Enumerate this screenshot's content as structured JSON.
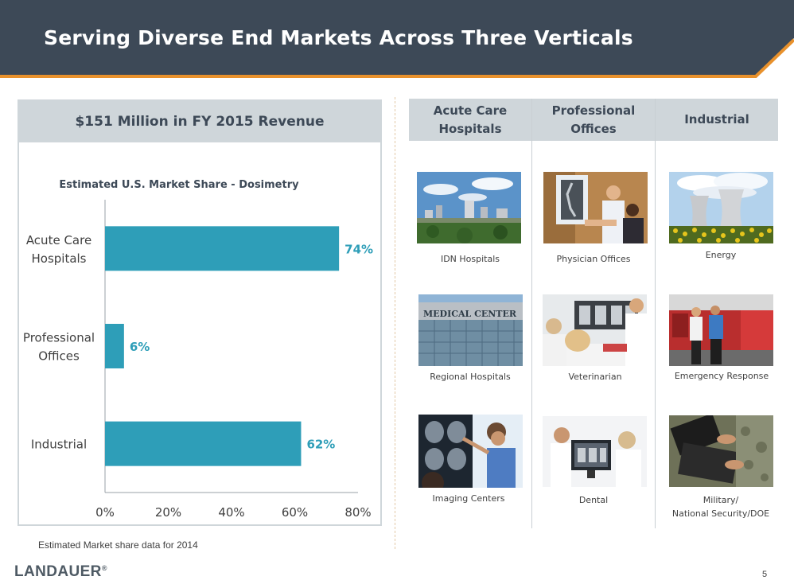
{
  "slide": {
    "title": "Serving Diverse End Markets Across Three Verticals",
    "page_number": "5",
    "footnote": "Estimated Market share data for 2014"
  },
  "logo": {
    "text": "LANDAUER",
    "reg": "®"
  },
  "left_panel": {
    "header": "$151 Million  in  FY 2015 Revenue"
  },
  "chart_data": {
    "type": "bar",
    "orientation": "horizontal",
    "title": "Estimated U.S. Market Share - Dosimetry",
    "categories": [
      "Acute Care Hospitals",
      "Professional Offices",
      "Industrial"
    ],
    "category_lines": [
      [
        "Acute Care",
        "Hospitals"
      ],
      [
        "Professional",
        "Offices"
      ],
      [
        "Industrial"
      ]
    ],
    "values": [
      74,
      6,
      62
    ],
    "data_labels": [
      "74%",
      "6%",
      "62%"
    ],
    "xlim": [
      0,
      80
    ],
    "xticks": [
      "0%",
      "20%",
      "40%",
      "60%",
      "80%"
    ],
    "xlabel": "",
    "ylabel": "",
    "grid": false,
    "bar_color": "#2e9eb8",
    "label_color": "#2e9eb8"
  },
  "columns": [
    {
      "header_lines": [
        "Acute Care",
        "Hospitals"
      ],
      "items": [
        {
          "caption_lines": [
            "IDN Hospitals"
          ],
          "icon": "city-skyline-photo"
        },
        {
          "caption_lines": [
            "Regional Hospitals"
          ],
          "icon": "medical-center-building-photo"
        },
        {
          "caption_lines": [
            "Imaging Centers"
          ],
          "icon": "brain-scan-viewing-photo"
        }
      ]
    },
    {
      "header_lines": [
        "Professional",
        "Offices"
      ],
      "items": [
        {
          "caption_lines": [
            "Physician Offices"
          ],
          "icon": "physician-xray-photo"
        },
        {
          "caption_lines": [
            "Veterinarian"
          ],
          "icon": "veterinarian-dog-photo"
        },
        {
          "caption_lines": [
            "Dental"
          ],
          "icon": "dental-monitor-photo"
        }
      ]
    },
    {
      "header_lines": [
        "Industrial"
      ],
      "items": [
        {
          "caption_lines": [
            "Energy"
          ],
          "icon": "cooling-towers-photo"
        },
        {
          "caption_lines": [
            "Emergency  Response"
          ],
          "icon": "firefighters-truck-photo"
        },
        {
          "caption_lines": [
            "Military/",
            "National Security/DOE"
          ],
          "icon": "soldier-laptop-photo"
        }
      ]
    }
  ],
  "colors": {
    "header_band": "#3d4957",
    "accent_orange": "#e8912c",
    "panel_gray": "#cfd6da",
    "heading_text": "#3d4957",
    "bar": "#2e9eb8"
  }
}
